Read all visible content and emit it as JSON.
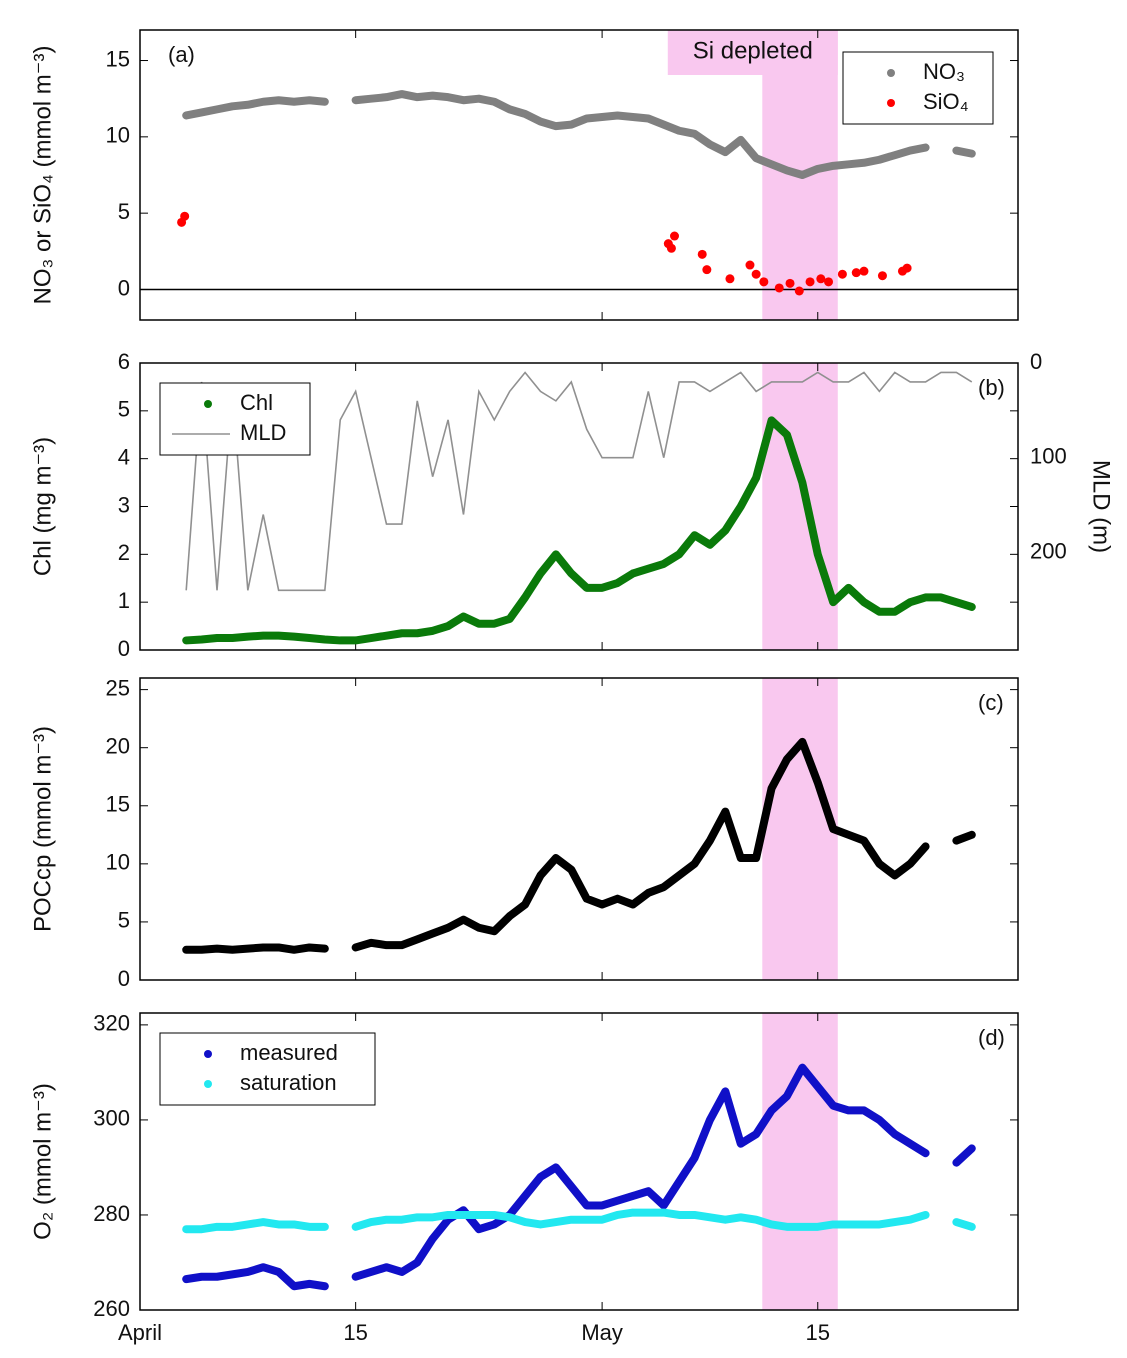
{
  "chart_data": [
    {
      "type": "scatter",
      "label": "(a)",
      "ylabel": "NO₃ or SiO₄ (mmol m⁻³)",
      "annotation": "Si depleted",
      "xlim": [
        0,
        57
      ],
      "ylim": [
        -2,
        17
      ],
      "yticks": [
        0,
        5,
        10,
        15
      ],
      "hline": 0,
      "highlight": [
        40.4,
        45.3
      ],
      "highlight_color": "#f9c8ef",
      "legend": "upper right",
      "x": [
        3,
        4,
        5,
        6,
        7,
        8,
        9,
        10,
        11,
        12,
        13,
        14,
        15,
        16,
        17,
        18,
        19,
        20,
        21,
        22,
        23,
        24,
        25,
        26,
        27,
        28,
        29,
        30,
        31,
        32,
        33,
        34,
        35,
        36,
        37,
        38,
        39,
        40,
        41,
        42,
        43,
        44,
        45,
        46,
        47,
        48,
        49,
        50,
        51,
        52,
        53,
        54
      ],
      "series": [
        {
          "name": "NO₃",
          "color": "#808080",
          "values": [
            11.4,
            11.6,
            11.8,
            12.0,
            12.1,
            12.3,
            12.4,
            12.3,
            12.4,
            12.3,
            null,
            12.4,
            12.5,
            12.6,
            12.8,
            12.6,
            12.7,
            12.6,
            12.4,
            12.5,
            12.3,
            11.8,
            11.5,
            11.0,
            10.7,
            10.8,
            11.2,
            11.3,
            11.4,
            11.3,
            11.2,
            10.8,
            10.4,
            10.2,
            9.5,
            9.0,
            9.8,
            8.6,
            8.2,
            7.8,
            7.5,
            7.9,
            8.1,
            8.2,
            8.3,
            8.5,
            8.8,
            9.1,
            9.3,
            null,
            9.1,
            8.9
          ]
        },
        {
          "name": "SiO₄",
          "color": "#ff0000",
          "x": [
            2.7,
            2.9,
            34.3,
            34.5,
            34.7,
            36.5,
            36.8,
            38.3,
            39.6,
            40,
            40.5,
            41.5,
            42.2,
            42.8,
            43.5,
            44.2,
            44.7,
            45.6,
            46.5,
            47,
            48.2,
            49.5,
            49.8
          ],
          "values": [
            4.4,
            4.8,
            3.0,
            2.7,
            3.5,
            2.3,
            1.3,
            0.7,
            1.6,
            1.0,
            0.5,
            0.1,
            0.4,
            -0.1,
            0.5,
            0.7,
            0.5,
            1.0,
            1.1,
            1.2,
            0.9,
            1.2,
            1.4
          ]
        }
      ]
    },
    {
      "type": "scatter",
      "label": "(b)",
      "ylabel": "Chl (mg m⁻³)",
      "y2label": "MLD (m)",
      "xlim": [
        0,
        57
      ],
      "ylim": [
        0,
        6
      ],
      "yticks": [
        0,
        1,
        2,
        3,
        4,
        5,
        6
      ],
      "y2lim": [
        0,
        303
      ],
      "y2ticks": [
        0,
        100,
        200
      ],
      "y2_inverted": true,
      "highlight": [
        40.4,
        45.3
      ],
      "highlight_color": "#f9c8ef",
      "legend": "upper left",
      "x": [
        3,
        4,
        5,
        6,
        7,
        8,
        9,
        10,
        11,
        12,
        13,
        14,
        15,
        16,
        17,
        18,
        19,
        20,
        21,
        22,
        23,
        24,
        25,
        26,
        27,
        28,
        29,
        30,
        31,
        32,
        33,
        34,
        35,
        36,
        37,
        38,
        39,
        40,
        41,
        42,
        43,
        44,
        45,
        46,
        47,
        48,
        49,
        50,
        51,
        52,
        53,
        54
      ],
      "series": [
        {
          "name": "Chl",
          "color": "#0a7a0a",
          "values": [
            0.2,
            0.22,
            0.25,
            0.25,
            0.28,
            0.3,
            0.3,
            0.28,
            0.25,
            0.22,
            0.2,
            0.2,
            0.25,
            0.3,
            0.35,
            0.35,
            0.4,
            0.5,
            0.7,
            0.55,
            0.55,
            0.65,
            1.1,
            1.6,
            2.0,
            1.6,
            1.3,
            1.3,
            1.4,
            1.6,
            1.7,
            1.8,
            2.0,
            2.4,
            2.2,
            2.5,
            3.0,
            3.6,
            4.8,
            4.5,
            3.5,
            2.0,
            1.0,
            1.3,
            1.0,
            0.8,
            0.8,
            1.0,
            1.1,
            1.1,
            1.0,
            0.9
          ]
        },
        {
          "name": "MLD",
          "color": "#909090",
          "type": "line",
          "axis": "y2",
          "values": [
            240,
            20,
            240,
            30,
            240,
            160,
            240,
            240,
            240,
            240,
            60,
            30,
            100,
            170,
            170,
            40,
            120,
            60,
            160,
            30,
            60,
            30,
            10,
            30,
            40,
            20,
            70,
            100,
            100,
            100,
            30,
            100,
            20,
            20,
            30,
            20,
            10,
            30,
            20,
            20,
            20,
            10,
            20,
            20,
            10,
            30,
            10,
            20,
            20,
            10,
            10,
            20
          ]
        }
      ]
    },
    {
      "type": "scatter",
      "label": "(c)",
      "ylabel": "POCcp (mmol m⁻³)",
      "xlim": [
        0,
        57
      ],
      "ylim": [
        0,
        26
      ],
      "yticks": [
        0,
        5,
        10,
        15,
        20,
        25
      ],
      "highlight": [
        40.4,
        45.3
      ],
      "highlight_color": "#f9c8ef",
      "x": [
        3,
        4,
        5,
        6,
        7,
        8,
        9,
        10,
        11,
        12,
        13,
        14,
        15,
        16,
        17,
        18,
        19,
        20,
        21,
        22,
        23,
        24,
        25,
        26,
        27,
        28,
        29,
        30,
        31,
        32,
        33,
        34,
        35,
        36,
        37,
        38,
        39,
        40,
        41,
        42,
        43,
        44,
        45,
        46,
        47,
        48,
        49,
        50,
        51,
        52,
        53,
        54
      ],
      "series": [
        {
          "color": "#000000",
          "values": [
            2.6,
            2.6,
            2.7,
            2.6,
            2.7,
            2.8,
            2.8,
            2.6,
            2.8,
            2.7,
            null,
            2.8,
            3.2,
            3.0,
            3.0,
            3.5,
            4.0,
            4.5,
            5.2,
            4.5,
            4.2,
            5.5,
            6.5,
            9.0,
            10.5,
            9.5,
            7.0,
            6.5,
            7.0,
            6.5,
            7.5,
            8.0,
            9.0,
            10.0,
            12.0,
            14.5,
            10.5,
            10.5,
            16.5,
            19.0,
            20.5,
            17.0,
            13.0,
            12.5,
            12.0,
            10.0,
            9.0,
            10.0,
            11.5,
            null,
            12.0,
            12.5
          ]
        }
      ]
    },
    {
      "type": "scatter",
      "label": "(d)",
      "ylabel": "O₂ (mmol m⁻³)",
      "xlim": [
        0,
        57
      ],
      "ylim": [
        260,
        322.5
      ],
      "yticks": [
        260,
        280,
        300,
        320
      ],
      "xticks": [
        {
          "value": 0,
          "label": "April"
        },
        {
          "value": 14,
          "label": "15"
        },
        {
          "value": 30,
          "label": "May"
        },
        {
          "value": 44,
          "label": "15"
        }
      ],
      "highlight": [
        40.4,
        45.3
      ],
      "highlight_color": "#f9c8ef",
      "legend": "upper left",
      "x": [
        3,
        4,
        5,
        6,
        7,
        8,
        9,
        10,
        11,
        12,
        13,
        14,
        15,
        16,
        17,
        18,
        19,
        20,
        21,
        22,
        23,
        24,
        25,
        26,
        27,
        28,
        29,
        30,
        31,
        32,
        33,
        34,
        35,
        36,
        37,
        38,
        39,
        40,
        41,
        42,
        43,
        44,
        45,
        46,
        47,
        48,
        49,
        50,
        51,
        52,
        53,
        54
      ],
      "series": [
        {
          "name": "measured",
          "color": "#1010c8",
          "values": [
            266.5,
            267,
            267,
            267.5,
            268,
            269,
            268,
            265,
            265.5,
            265,
            null,
            267,
            268,
            269,
            268,
            270,
            275,
            279,
            281,
            277,
            278,
            280,
            284,
            288,
            290,
            286,
            282,
            282,
            283,
            284,
            285,
            282,
            287,
            292,
            300,
            306,
            295,
            297,
            302,
            305,
            311,
            307,
            303,
            302,
            302,
            300,
            297,
            295,
            293,
            null,
            291,
            294
          ]
        },
        {
          "name": "saturation",
          "color": "#22e8f0",
          "values": [
            277,
            277,
            277.5,
            277.5,
            278,
            278.5,
            278,
            278,
            277.5,
            277.5,
            null,
            277.5,
            278.5,
            279,
            279,
            279.5,
            279.5,
            280,
            280,
            280,
            280,
            279.5,
            278.5,
            278,
            278.5,
            279,
            279,
            279,
            280,
            280.5,
            280.5,
            280.5,
            280,
            280,
            279.5,
            279,
            279.5,
            279,
            278,
            277.5,
            277.5,
            277.5,
            278,
            278,
            278,
            278,
            278.5,
            279,
            280,
            null,
            278.5,
            277.5
          ]
        }
      ]
    }
  ]
}
